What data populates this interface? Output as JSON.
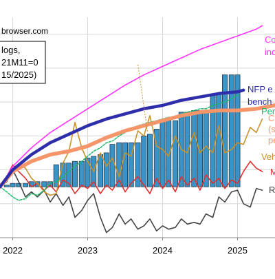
{
  "source_text": "browser.com",
  "info_box_lines": [
    "logs,",
    "21M11=0",
    "15/2025)"
  ],
  "colors": {
    "nfp": "#2e2eaa",
    "consumption": "#ff33ff",
    "personal_income": "#f4956a",
    "industrial_production": "#c8922a",
    "vehicle_sales": "#e03030",
    "real_sales": "#1db86a",
    "retail": "#444444",
    "bars": "#3a93c6"
  },
  "chart_data": {
    "type": "line",
    "title": "",
    "xlabel": "",
    "ylabel": "",
    "x_ticks": [
      "2022",
      "2023",
      "2024",
      "2025"
    ],
    "x_range": [
      2021.83,
      2025.5
    ],
    "ylim": [
      -3,
      10
    ],
    "grid": true,
    "legend_placement": "right",
    "series": [
      {
        "name": "Co",
        "name_line2": "ind",
        "color_key": "consumption",
        "points": [
          [
            2021.83,
            0
          ],
          [
            2022.0,
            1.2
          ],
          [
            2022.25,
            2.3
          ],
          [
            2022.5,
            3.2
          ],
          [
            2022.75,
            3.9
          ],
          [
            2023.0,
            4.6
          ],
          [
            2023.25,
            5.3
          ],
          [
            2023.5,
            6.0
          ],
          [
            2023.75,
            6.6
          ],
          [
            2024.0,
            7.1
          ],
          [
            2024.25,
            7.6
          ],
          [
            2024.5,
            8.1
          ],
          [
            2024.75,
            8.5
          ],
          [
            2025.0,
            8.9
          ],
          [
            2025.25,
            9.3
          ],
          [
            2025.33,
            9.5
          ]
        ]
      },
      {
        "name": "NFP e",
        "name_line2": "bench",
        "color_key": "nfp",
        "points": [
          [
            2021.83,
            0
          ],
          [
            2022.0,
            1.0
          ],
          [
            2022.25,
            1.9
          ],
          [
            2022.5,
            2.6
          ],
          [
            2022.75,
            3.1
          ],
          [
            2023.0,
            3.6
          ],
          [
            2023.25,
            4.0
          ],
          [
            2023.5,
            4.3
          ],
          [
            2023.75,
            4.6
          ],
          [
            2024.0,
            4.8
          ],
          [
            2024.25,
            5.1
          ],
          [
            2024.5,
            5.3
          ],
          [
            2024.75,
            5.5
          ],
          [
            2025.0,
            5.6
          ],
          [
            2025.08,
            5.7
          ]
        ]
      },
      {
        "name": "Per",
        "name_line2": "",
        "color_key": "real_sales",
        "points": [
          [
            2021.83,
            0
          ],
          [
            2021.92,
            -0.3
          ],
          [
            2022.0,
            -0.6
          ],
          [
            2022.08,
            -0.8
          ],
          [
            2022.17,
            -0.7
          ],
          [
            2022.25,
            -0.4
          ],
          [
            2022.33,
            -0.5
          ],
          [
            2022.42,
            -0.2
          ],
          [
            2022.5,
            0.2
          ],
          [
            2022.58,
            0.3
          ],
          [
            2022.67,
            0.6
          ],
          [
            2022.75,
            0.9
          ],
          [
            2022.83,
            1.2
          ],
          [
            2022.92,
            1.5
          ],
          [
            2023.0,
            1.8
          ],
          [
            2023.08,
            2.1
          ],
          [
            2023.17,
            2.3
          ],
          [
            2023.25,
            2.6
          ],
          [
            2023.33,
            2.7
          ],
          [
            2023.42,
            3.0
          ],
          [
            2023.5,
            3.2
          ],
          [
            2023.58,
            3.4
          ],
          [
            2023.67,
            3.6
          ],
          [
            2023.75,
            3.7
          ],
          [
            2023.83,
            3.8
          ],
          [
            2023.92,
            3.9
          ],
          [
            2024.0,
            4.0
          ],
          [
            2024.08,
            4.1
          ],
          [
            2024.17,
            4.1
          ],
          [
            2024.25,
            4.3
          ],
          [
            2024.33,
            4.4
          ],
          [
            2024.42,
            4.5
          ],
          [
            2024.5,
            4.6
          ],
          [
            2024.58,
            4.6
          ],
          [
            2024.67,
            4.8
          ],
          [
            2024.75,
            4.9
          ],
          [
            2024.83,
            5.0
          ],
          [
            2024.92,
            5.2
          ],
          [
            2025.0,
            5.4
          ]
        ]
      },
      {
        "name": "C",
        "name_line2": "(s",
        "name_line3": "pe",
        "color_key": "personal_income",
        "points": [
          [
            2021.83,
            0
          ],
          [
            2022.0,
            0.9
          ],
          [
            2022.25,
            1.5
          ],
          [
            2022.5,
            1.9
          ],
          [
            2022.75,
            2.1
          ],
          [
            2023.0,
            2.4
          ],
          [
            2023.25,
            2.9
          ],
          [
            2023.5,
            3.3
          ],
          [
            2023.75,
            3.6
          ],
          [
            2024.0,
            3.9
          ],
          [
            2024.25,
            4.2
          ],
          [
            2024.5,
            4.4
          ],
          [
            2024.75,
            4.5
          ],
          [
            2025.0,
            4.5
          ],
          [
            2025.25,
            4.6
          ],
          [
            2025.5,
            4.8
          ]
        ]
      },
      {
        "name": "Veh",
        "name_line2": "",
        "color_key": "industrial_production",
        "points": [
          [
            2021.83,
            0
          ],
          [
            2021.92,
            0.4
          ],
          [
            2022.0,
            0.9
          ],
          [
            2022.08,
            1.3
          ],
          [
            2022.17,
            1.1
          ],
          [
            2022.25,
            0.5
          ],
          [
            2022.33,
            0.2
          ],
          [
            2022.42,
            -0.3
          ],
          [
            2022.5,
            -0.5
          ],
          [
            2022.58,
            -0.4
          ],
          [
            2022.67,
            1.4
          ],
          [
            2022.75,
            2.1
          ],
          [
            2022.83,
            3.8
          ],
          [
            2022.92,
            2.3
          ],
          [
            2023.0,
            1.5
          ],
          [
            2023.08,
            0.9
          ],
          [
            2023.17,
            2.0
          ],
          [
            2023.25,
            1.2
          ],
          [
            2023.33,
            1.7
          ],
          [
            2023.42,
            0.6
          ],
          [
            2023.5,
            2.0
          ],
          [
            2023.58,
            1.8
          ],
          [
            2023.67,
            3.3
          ],
          [
            2023.75,
            3.0
          ],
          [
            2023.83,
            4.2
          ],
          [
            2023.92,
            2.4
          ],
          [
            2024.0,
            2.2
          ],
          [
            2024.08,
            1.8
          ],
          [
            2024.17,
            3.0
          ],
          [
            2024.25,
            2.2
          ],
          [
            2024.33,
            2.0
          ],
          [
            2024.42,
            3.2
          ],
          [
            2024.5,
            2.0
          ],
          [
            2024.58,
            2.4
          ],
          [
            2024.67,
            2.0
          ],
          [
            2024.75,
            3.6
          ],
          [
            2024.83,
            2.0
          ],
          [
            2024.92,
            2.2
          ],
          [
            2025.0,
            2.6
          ],
          [
            2025.08,
            2.5
          ],
          [
            2025.17,
            3.5
          ],
          [
            2025.25,
            3.2
          ],
          [
            2025.33,
            4.0
          ]
        ]
      },
      {
        "name": "M",
        "name_line2": "",
        "color_key": "vehicle_sales",
        "points": [
          [
            2021.83,
            0
          ],
          [
            2021.92,
            0.6
          ],
          [
            2022.0,
            1.3
          ],
          [
            2022.08,
            0.9
          ],
          [
            2022.17,
            0.5
          ],
          [
            2022.25,
            0.0
          ],
          [
            2022.33,
            0.2
          ],
          [
            2022.42,
            -0.2
          ],
          [
            2022.5,
            0.1
          ],
          [
            2022.58,
            -0.3
          ],
          [
            2022.67,
            0.4
          ],
          [
            2022.75,
            0.2
          ],
          [
            2022.83,
            -0.4
          ],
          [
            2022.92,
            0.1
          ],
          [
            2023.0,
            -0.1
          ],
          [
            2023.08,
            0.3
          ],
          [
            2023.17,
            -0.4
          ],
          [
            2023.25,
            0.1
          ],
          [
            2023.33,
            -0.2
          ],
          [
            2023.42,
            0.4
          ],
          [
            2023.5,
            -0.3
          ],
          [
            2023.58,
            0.2
          ],
          [
            2023.67,
            0.6
          ],
          [
            2023.75,
            0.1
          ],
          [
            2023.83,
            -0.4
          ],
          [
            2023.92,
            0.5
          ],
          [
            2024.0,
            -0.1
          ],
          [
            2024.08,
            0.4
          ],
          [
            2024.17,
            -0.3
          ],
          [
            2024.25,
            0.6
          ],
          [
            2024.33,
            0.1
          ],
          [
            2024.42,
            0.5
          ],
          [
            2024.5,
            -0.2
          ],
          [
            2024.58,
            0.7
          ],
          [
            2024.67,
            0.2
          ],
          [
            2024.75,
            0.5
          ],
          [
            2024.83,
            -0.1
          ],
          [
            2024.92,
            0.4
          ],
          [
            2025.0,
            0.2
          ],
          [
            2025.08,
            0.9
          ],
          [
            2025.17,
            1.5
          ],
          [
            2025.25,
            1.1
          ],
          [
            2025.33,
            0.9
          ]
        ]
      },
      {
        "name": "R",
        "name_line2": "",
        "color_key": "retail",
        "points": [
          [
            2021.83,
            0
          ],
          [
            2021.92,
            0.3
          ],
          [
            2022.0,
            1.0
          ],
          [
            2022.08,
            0.3
          ],
          [
            2022.17,
            -0.6
          ],
          [
            2022.25,
            -0.3
          ],
          [
            2022.33,
            -0.6
          ],
          [
            2022.42,
            -0.2
          ],
          [
            2022.5,
            -0.9
          ],
          [
            2022.58,
            -0.4
          ],
          [
            2022.67,
            -1.1
          ],
          [
            2022.75,
            -0.6
          ],
          [
            2022.83,
            -1.8
          ],
          [
            2022.92,
            -1.4
          ],
          [
            2023.0,
            -0.8
          ],
          [
            2023.08,
            -0.4
          ],
          [
            2023.17,
            -1.8
          ],
          [
            2023.25,
            -2.7
          ],
          [
            2023.33,
            -2.4
          ],
          [
            2023.42,
            -1.6
          ],
          [
            2023.5,
            -2.2
          ],
          [
            2023.58,
            -1.9
          ],
          [
            2023.67,
            -2.5
          ],
          [
            2023.75,
            -2.3
          ],
          [
            2023.83,
            -1.9
          ],
          [
            2023.92,
            -2.6
          ],
          [
            2024.0,
            -2.3
          ],
          [
            2024.08,
            -2.5
          ],
          [
            2024.17,
            -2.4
          ],
          [
            2024.25,
            -1.9
          ],
          [
            2024.33,
            -2.2
          ],
          [
            2024.42,
            -2.1
          ],
          [
            2024.5,
            -2.2
          ],
          [
            2024.58,
            -1.6
          ],
          [
            2024.67,
            -1.8
          ],
          [
            2024.75,
            -0.6
          ],
          [
            2024.83,
            -0.9
          ],
          [
            2024.92,
            -0.3
          ],
          [
            2025.0,
            -0.2
          ],
          [
            2025.08,
            -1.0
          ],
          [
            2025.17,
            -1.2
          ],
          [
            2025.25,
            -0.1
          ],
          [
            2025.33,
            -0.2
          ]
        ]
      }
    ],
    "bars": {
      "color_key": "bars",
      "x": [
        2021.92,
        2022.0,
        2022.08,
        2022.17,
        2022.25,
        2022.33,
        2022.42,
        2022.5,
        2022.58,
        2022.67,
        2022.75,
        2022.83,
        2022.92,
        2023.0,
        2023.08,
        2023.17,
        2023.25,
        2023.33,
        2023.42,
        2023.5,
        2023.58,
        2023.67,
        2023.75,
        2023.83,
        2023.92,
        2024.0,
        2024.08,
        2024.17,
        2024.25,
        2024.33,
        2024.42,
        2024.5,
        2024.58,
        2024.67,
        2024.75,
        2024.83,
        2024.92,
        2025.0
      ],
      "values": [
        0.1,
        0.2,
        0.2,
        0.2,
        0.3,
        0.3,
        0.3,
        0.3,
        1.3,
        1.4,
        1.4,
        1.5,
        1.5,
        1.7,
        1.8,
        1.9,
        2.0,
        2.5,
        2.6,
        2.6,
        2.6,
        2.6,
        3.0,
        3.1,
        3.4,
        3.9,
        3.9,
        3.9,
        4.4,
        4.4,
        4.5,
        4.5,
        4.5,
        5.4,
        5.5,
        6.6,
        6.6,
        6.6
      ]
    },
    "annotation_line": {
      "color_key": "industrial_production",
      "points": [
        [
          2023.67,
          7.2
        ],
        [
          2023.8,
          3.2
        ]
      ]
    }
  }
}
